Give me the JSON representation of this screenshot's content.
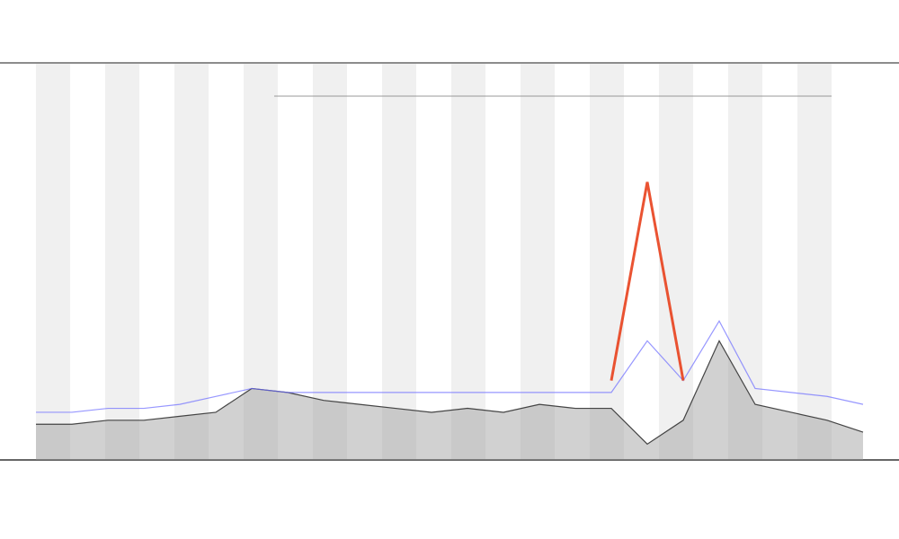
{
  "chart_data": {
    "type": "line",
    "ylim": [
      0,
      100
    ],
    "series": [
      {
        "color": "#333333",
        "values": [
          9,
          9,
          10,
          10,
          11,
          12,
          18,
          17,
          15,
          14,
          13,
          12,
          13,
          12,
          14,
          13,
          13,
          4,
          10,
          30,
          14,
          12,
          10,
          7
        ]
      },
      {
        "color": "#6b6bff",
        "values": [
          12,
          12,
          13,
          13,
          14,
          16,
          18,
          17,
          17,
          17,
          17,
          17,
          17,
          17,
          17,
          17,
          17,
          30,
          20,
          35,
          18,
          17,
          16,
          14
        ]
      },
      {
        "color": "#e8401c",
        "values": [
          null,
          null,
          null,
          null,
          null,
          null,
          null,
          null,
          null,
          null,
          null,
          null,
          null,
          null,
          null,
          null,
          20,
          70,
          20,
          null,
          null,
          null,
          null,
          null
        ]
      }
    ]
  }
}
